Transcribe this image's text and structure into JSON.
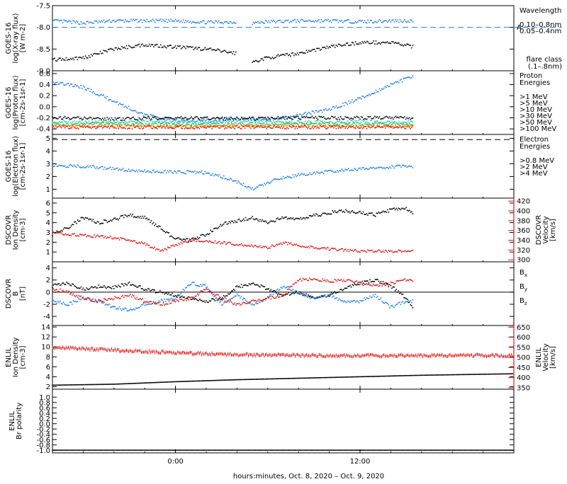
{
  "colors": {
    "black": "#000000",
    "blue": "#1e7fe0",
    "cyan": "#19c8e6",
    "green": "#2fc82f",
    "orange": "#f28c00",
    "red": "#e41414",
    "magenta": "#e11ee1"
  },
  "x_axis": {
    "label": "hours:minutes, Oct.  8, 2020 – Oct.  9, 2020",
    "ticks": [
      {
        "t": 0,
        "label": "0:00"
      },
      {
        "t": 12,
        "label": "12:00"
      }
    ],
    "range_hours": [
      -8,
      22
    ]
  },
  "chart_data": [
    {
      "id": "xray",
      "type": "scatter",
      "ylabel": [
        "GOES-16",
        "log(X-ray flux)",
        "[W m-2]"
      ],
      "ylim": [
        -9.0,
        -7.5
      ],
      "y_ticks": [
        -7.5,
        -8.0,
        -8.5,
        -9.0
      ],
      "y_tick_labels": [
        "-7.5",
        "-8.0",
        "-8.5",
        "-9.0"
      ],
      "ref_line": {
        "y": -8.0,
        "label": "A"
      },
      "legend_title": [
        "Wavelength"
      ],
      "legend": [
        {
          "name": "0.10–0.8nm",
          "color": "blue"
        },
        {
          "name": "0.05–0.4nm",
          "color": "black"
        }
      ],
      "note": [
        "flare class",
        "(.1–.8nm)"
      ],
      "series": [
        {
          "name": "0.10–0.8nm",
          "color": "blue",
          "x": [
            -8,
            -6,
            -4,
            -2,
            0,
            2,
            4,
            4.5,
            5,
            6,
            8,
            10,
            12,
            14,
            15.5
          ],
          "y": [
            -7.85,
            -7.9,
            -7.85,
            -7.85,
            -7.85,
            -7.88,
            -7.88,
            null,
            -7.9,
            -7.87,
            -7.85,
            -7.85,
            -7.87,
            -7.85,
            -7.85
          ]
        },
        {
          "name": "0.05–0.4nm",
          "color": "black",
          "x": [
            -8,
            -6,
            -4,
            -2,
            0,
            2,
            4,
            4.5,
            5,
            6,
            8,
            10,
            12,
            14,
            15.5
          ],
          "y": [
            -8.75,
            -8.7,
            -8.5,
            -8.4,
            -8.45,
            -8.5,
            -8.6,
            null,
            -8.8,
            -8.7,
            -8.6,
            -8.45,
            -8.35,
            -8.35,
            -8.45
          ]
        }
      ]
    },
    {
      "id": "proton",
      "type": "scatter",
      "ylabel": [
        "GOES-16",
        "log(Proton flux)",
        "[cm-2s-1sr-1]"
      ],
      "ylim": [
        -0.5,
        0.65
      ],
      "y_ticks": [
        0.6,
        0.4,
        0.2,
        0.0,
        -0.2,
        -0.4
      ],
      "y_tick_labels": [
        "0.6",
        "0.4",
        "0.2",
        "0.0",
        "-0.2",
        "-0.4"
      ],
      "legend_title": [
        "Proton",
        "Energies"
      ],
      "legend": [
        {
          "name": ">1 MeV",
          "color": "blue"
        },
        {
          "name": ">5 MeV",
          "color": "black"
        },
        {
          "name": ">10 MeV",
          "color": "cyan"
        },
        {
          "name": ">30 MeV",
          "color": "green"
        },
        {
          "name": ">50 MeV",
          "color": "orange"
        },
        {
          "name": ">100 MeV",
          "color": "red"
        }
      ],
      "series": [
        {
          "name": ">1 MeV",
          "color": "blue",
          "x": [
            -8,
            -6,
            -4,
            -2,
            0,
            2,
            4,
            6,
            8,
            10,
            12,
            14,
            15.5
          ],
          "y": [
            0.45,
            0.35,
            0.1,
            -0.15,
            -0.25,
            -0.25,
            -0.2,
            -0.25,
            -0.15,
            -0.05,
            0.15,
            0.4,
            0.55
          ]
        },
        {
          "name": ">5 MeV",
          "color": "black",
          "x": [
            -8,
            -4,
            0,
            4,
            8,
            12,
            15.5
          ],
          "y": [
            -0.2,
            -0.22,
            -0.2,
            -0.22,
            -0.2,
            -0.2,
            -0.2
          ]
        },
        {
          "name": ">10 MeV",
          "color": "cyan",
          "x": [
            -8,
            -4,
            0,
            4,
            8,
            12,
            15.5
          ],
          "y": [
            -0.28,
            -0.27,
            -0.28,
            -0.27,
            -0.28,
            -0.27,
            -0.28
          ]
        },
        {
          "name": ">30 MeV",
          "color": "green",
          "x": [
            -8,
            -4,
            0,
            4,
            8,
            12,
            15.5
          ],
          "y": [
            -0.32,
            -0.31,
            -0.32,
            -0.31,
            -0.32,
            -0.31,
            -0.32
          ]
        },
        {
          "name": ">50 MeV",
          "color": "orange",
          "x": [
            -8,
            -4,
            0,
            4,
            8,
            12,
            15.5
          ],
          "y": [
            -0.34,
            -0.34,
            -0.35,
            -0.34,
            -0.34,
            -0.35,
            -0.34
          ]
        },
        {
          "name": ">100 MeV",
          "color": "red",
          "x": [
            -8,
            -4,
            0,
            4,
            8,
            12,
            15.5
          ],
          "y": [
            -0.37,
            -0.37,
            -0.37,
            -0.37,
            -0.37,
            -0.37,
            -0.37
          ]
        }
      ]
    },
    {
      "id": "electron",
      "type": "scatter",
      "ylabel": [
        "GOES-16",
        "log(Electron flux)",
        "[cm-2s-1sr-1]"
      ],
      "ylim": [
        0.3,
        5.3
      ],
      "y_ticks": [
        5,
        4,
        3,
        2,
        1
      ],
      "y_tick_labels": [
        "5",
        "4",
        "3",
        "2",
        "1"
      ],
      "ref_line": {
        "y": 4.9
      },
      "legend_title": [
        "Electron",
        "Energies"
      ],
      "legend": [
        {
          "name": ">0.8 MeV",
          "color": "black"
        },
        {
          "name": ">2 MeV",
          "color": "blue"
        },
        {
          "name": ">4 MeV",
          "color": "magenta"
        }
      ],
      "series": [
        {
          "name": ">2 MeV",
          "color": "blue",
          "x": [
            -8,
            -6,
            -4,
            -2,
            0,
            2,
            3,
            4,
            5,
            6,
            7,
            8,
            10,
            12,
            14,
            15.5
          ],
          "y": [
            2.85,
            2.8,
            2.6,
            2.4,
            2.35,
            2.3,
            2.0,
            1.6,
            1.0,
            1.5,
            1.9,
            2.1,
            2.4,
            2.6,
            2.75,
            2.8
          ]
        }
      ]
    },
    {
      "id": "dscovr_plasma",
      "type": "line",
      "ylabel": [
        "DSCOVR",
        "Ion Density",
        "[cm-3]"
      ],
      "ylim": [
        0,
        6.5
      ],
      "y_ticks": [
        6,
        5,
        4,
        3,
        2,
        1
      ],
      "y_tick_labels": [
        "6",
        "5",
        "4",
        "3",
        "2",
        "1"
      ],
      "right_ylabel": [
        "DSCOVR",
        "Velocity",
        "[km/s]"
      ],
      "right_ylim": [
        296,
        426
      ],
      "right_ticks": [
        420,
        400,
        380,
        360,
        340,
        320,
        300
      ],
      "right_tick_labels": [
        "420",
        "400",
        "380",
        "360",
        "340",
        "320",
        "300"
      ],
      "series": [
        {
          "name": "Ion Density",
          "axis": "left",
          "color": "black",
          "x": [
            -8,
            -7,
            -6,
            -5,
            -4,
            -3,
            -2,
            -1,
            0,
            1,
            2,
            3,
            4,
            5,
            6,
            7,
            8,
            9,
            10,
            11,
            12,
            13,
            14,
            15,
            15.5
          ],
          "y": [
            2.8,
            3.5,
            4.5,
            4.0,
            4.3,
            4.8,
            4.5,
            3.5,
            2.3,
            2.2,
            2.8,
            3.8,
            4.2,
            4.5,
            4.0,
            4.5,
            4.3,
            4.7,
            5.0,
            5.2,
            5.0,
            4.8,
            5.3,
            5.5,
            4.8
          ]
        },
        {
          "name": "Velocity",
          "axis": "right",
          "color": "red",
          "x": [
            -8,
            -7,
            -6,
            -5,
            -4,
            -3,
            -2,
            -1,
            0,
            1,
            2,
            3,
            4,
            5,
            6,
            7,
            8,
            9,
            10,
            11,
            12,
            13,
            14,
            15,
            15.5
          ],
          "y": [
            355,
            352,
            350,
            348,
            345,
            340,
            333,
            318,
            330,
            340,
            338,
            335,
            332,
            328,
            325,
            335,
            330,
            325,
            322,
            320,
            318,
            318,
            317,
            318,
            318
          ]
        }
      ]
    },
    {
      "id": "dscovr_mag",
      "type": "line",
      "ylabel": [
        "DSCOVR",
        "B",
        "[nT]"
      ],
      "ylim": [
        -5.5,
        5
      ],
      "y_ticks": [
        4,
        2,
        0,
        -2,
        -4
      ],
      "y_tick_labels": [
        "4",
        "2",
        "0",
        "-2",
        "-4"
      ],
      "zero_line": true,
      "legend": [
        {
          "name": "Bx",
          "color": "black"
        },
        {
          "name": "By",
          "color": "blue"
        },
        {
          "name": "Bz",
          "color": "red"
        }
      ],
      "series": [
        {
          "name": "Bx",
          "color": "black",
          "x": [
            -8,
            -7,
            -6,
            -5,
            -4,
            -3,
            -2,
            -1,
            0,
            1,
            2,
            3,
            4,
            5,
            6,
            7,
            8,
            9,
            10,
            11,
            12,
            13,
            14,
            15,
            15.5
          ],
          "y": [
            1.0,
            1.5,
            0.5,
            1.0,
            0.8,
            1.5,
            0.5,
            0.0,
            -0.5,
            -1.0,
            -1.5,
            -1.0,
            0.8,
            1.5,
            0.5,
            -0.5,
            0.0,
            -1.0,
            -0.5,
            0.5,
            1.5,
            2.0,
            1.0,
            -1.0,
            -3.0
          ]
        },
        {
          "name": "By",
          "color": "blue",
          "x": [
            -8,
            -7,
            -6,
            -5,
            -4,
            -3,
            -2,
            -1,
            0,
            1,
            2,
            3,
            4,
            5,
            6,
            7,
            8,
            9,
            10,
            11,
            12,
            13,
            14,
            15,
            15.5
          ],
          "y": [
            -1.5,
            -2.0,
            -1.0,
            -1.5,
            -2.5,
            -3.0,
            -2.0,
            -1.5,
            -1.0,
            1.5,
            1.0,
            -2.0,
            -0.5,
            -2.0,
            -1.0,
            1.0,
            0.0,
            -1.0,
            -0.5,
            -1.5,
            -1.5,
            -0.5,
            -2.5,
            -1.5,
            -1.5
          ]
        },
        {
          "name": "Bz",
          "color": "red",
          "x": [
            -8,
            -7,
            -6,
            -5,
            -4,
            -3,
            -2,
            -1,
            0,
            1,
            2,
            3,
            4,
            5,
            6,
            7,
            8,
            9,
            10,
            11,
            12,
            13,
            14,
            15,
            15.5
          ],
          "y": [
            0.5,
            0.0,
            -1.0,
            -1.5,
            -1.0,
            -0.5,
            -1.5,
            -2.0,
            -1.5,
            -1.0,
            0.5,
            -1.0,
            -2.0,
            -1.5,
            -1.0,
            -0.5,
            2.0,
            2.2,
            1.8,
            2.0,
            1.5,
            1.0,
            1.5,
            2.0,
            2.0
          ]
        }
      ]
    },
    {
      "id": "enlil_plasma",
      "type": "line",
      "ylabel": [
        "ENLIL",
        "Ion Density",
        "[cm-3]"
      ],
      "ylim": [
        1.5,
        14.3
      ],
      "y_ticks": [
        14,
        12,
        10,
        8,
        6,
        4,
        2
      ],
      "y_tick_labels": [
        "14",
        "12",
        "10",
        "8",
        "6",
        "4",
        "2"
      ],
      "right_ylabel": [
        "ENLIL",
        "Velocity",
        "[km/s]"
      ],
      "right_ylim": [
        343,
        658
      ],
      "right_ticks": [
        650,
        600,
        550,
        500,
        450,
        400,
        350
      ],
      "right_tick_labels": [
        "650",
        "600",
        "550",
        "500",
        "450",
        "400",
        "350"
      ],
      "series": [
        {
          "name": "Ion Density",
          "axis": "left",
          "color": "black",
          "x": [
            -8,
            -4,
            0,
            4,
            8,
            12,
            16,
            20,
            22
          ],
          "y": [
            2.3,
            2.5,
            3.0,
            3.4,
            3.7,
            4.0,
            4.3,
            4.5,
            4.6
          ]
        },
        {
          "name": "Velocity",
          "axis": "right",
          "color": "red",
          "x": [
            -8,
            -6,
            -4,
            -2,
            0,
            2,
            4,
            6,
            8,
            12,
            16,
            20,
            22
          ],
          "y": [
            548,
            543,
            537,
            530,
            523,
            518,
            514,
            512,
            510,
            509,
            509,
            510,
            510
          ]
        }
      ]
    },
    {
      "id": "enlil_polarity",
      "type": "line",
      "ylabel": [
        "ENLIL",
        "Br polarity"
      ],
      "ylim": [
        -1.1,
        1.3
      ],
      "y_ticks": [
        1.0,
        0.8,
        0.6,
        0.4,
        0.2,
        0.0,
        -0.2,
        -0.4,
        -0.6,
        -0.8,
        -1.0
      ],
      "y_tick_labels": [
        "1.0",
        "0.8",
        "0.6",
        "0.4",
        "0.2",
        "0.0",
        "-0.2",
        "-0.4",
        "-0.6",
        "-0.8",
        "-1.0"
      ],
      "series": [
        {
          "name": "Br polarity",
          "color": "black",
          "x": [
            -8,
            22
          ],
          "y": [
            -1.0,
            -1.0
          ]
        }
      ]
    }
  ]
}
